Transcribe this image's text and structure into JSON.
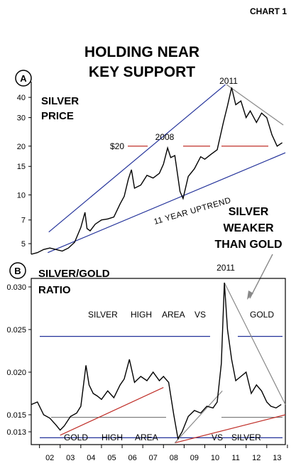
{
  "chart_label": "CHART 1",
  "headline_line1": "HOLDING NEAR",
  "headline_line2": "KEY SUPPORT",
  "callout_line1": "SILVER",
  "callout_line2": "WEAKER",
  "callout_line3": "THAN GOLD",
  "chart_data": [
    {
      "type": "line",
      "panel_marker": "A",
      "title_line1": "SILVER",
      "title_line2": "PRICE",
      "scale": "log",
      "ylim": [
        4.3,
        50
      ],
      "yticks": [
        5,
        7,
        10,
        15,
        20,
        30,
        40
      ],
      "xlim": [
        2001.6,
        2013.9
      ],
      "annotations": {
        "level_label": "$20",
        "label_2008": "2008",
        "label_2011": "2011",
        "trend_label": "11 YEAR UPTREND"
      },
      "trendlines": [
        {
          "name": "upper channel",
          "x": [
            2002.45,
            2011.0
          ],
          "y": [
            5.9,
            48.0
          ]
        },
        {
          "name": "11 year uptrend",
          "x": [
            2002.4,
            2013.9
          ],
          "y": [
            4.4,
            18.2
          ]
        },
        {
          "name": "2011 downtrend",
          "x": [
            2011.05,
            2013.8
          ],
          "y": [
            48.0,
            27.0
          ]
        },
        {
          "name": "$20 level",
          "level": 20
        }
      ],
      "x": [
        2001.6,
        2001.9,
        2002.2,
        2002.5,
        2002.8,
        2003.1,
        2003.4,
        2003.7,
        2004.0,
        2004.2,
        2004.3,
        2004.45,
        2004.7,
        2005.0,
        2005.3,
        2005.6,
        2005.9,
        2006.1,
        2006.3,
        2006.45,
        2006.6,
        2006.9,
        2007.2,
        2007.5,
        2007.8,
        2008.0,
        2008.2,
        2008.35,
        2008.55,
        2008.8,
        2008.95,
        2009.2,
        2009.5,
        2009.8,
        2010.0,
        2010.3,
        2010.6,
        2010.9,
        2011.1,
        2011.3,
        2011.5,
        2011.75,
        2012.0,
        2012.2,
        2012.5,
        2012.75,
        2013.0,
        2013.25,
        2013.5,
        2013.75
      ],
      "y": [
        4.3,
        4.4,
        4.6,
        4.7,
        4.6,
        4.5,
        4.7,
        5.1,
        6.3,
        7.8,
        6.2,
        6.0,
        6.6,
        7.0,
        7.1,
        7.3,
        8.8,
        9.8,
        12.5,
        14.3,
        11.0,
        11.5,
        13.2,
        12.7,
        13.6,
        15.5,
        19.5,
        17.0,
        17.5,
        10.5,
        9.5,
        13.0,
        14.5,
        17.2,
        16.6,
        17.8,
        19.0,
        28.0,
        35.5,
        46.0,
        36.0,
        38.0,
        30.0,
        33.0,
        28.0,
        32.0,
        30.0,
        23.5,
        20.0,
        21.0
      ]
    },
    {
      "type": "line",
      "panel_marker": "B",
      "title_line1": "SILVER/GOLD",
      "title_line2": "RATIO",
      "ylim": [
        0.0115,
        0.031
      ],
      "yticks": [
        0.013,
        0.015,
        0.02,
        0.025,
        0.03
      ],
      "ytick_labels": [
        "0.013",
        "0.015",
        "0.020",
        "0.025",
        "0.030"
      ],
      "xlim": [
        2001.6,
        2013.9
      ],
      "categories": [
        "02",
        "03",
        "04",
        "05",
        "06",
        "07",
        "08",
        "09",
        "10",
        "11",
        "12",
        "13"
      ],
      "annotations": {
        "label_2011": "2011",
        "top_words": [
          "SILVER",
          "HIGH",
          "AREA",
          "VS",
          "GOLD"
        ],
        "bottom_words": [
          "GOLD",
          "HIGH",
          "AREA",
          "VS",
          "SILVER"
        ]
      },
      "reference_levels": [
        0.0242,
        0.0147,
        0.0123
      ],
      "trendlines": [
        {
          "name": "2003-2008 uptrend",
          "x": [
            2003.0,
            2008.0
          ],
          "y": [
            0.0126,
            0.0182
          ]
        },
        {
          "name": "2008-2013 uptrend",
          "x": [
            2008.55,
            2013.9
          ],
          "y": [
            0.0117,
            0.015
          ]
        },
        {
          "name": "2008-2011 rise",
          "x": [
            2008.55,
            2010.85
          ],
          "y": [
            0.0117,
            0.0178
          ]
        },
        {
          "name": "2011 downtrend",
          "x": [
            2010.95,
            2013.9
          ],
          "y": [
            0.0305,
            0.0162
          ]
        }
      ],
      "x": [
        2001.6,
        2001.9,
        2002.2,
        2002.5,
        2002.8,
        2003.0,
        2003.2,
        2003.5,
        2003.8,
        2004.0,
        2004.25,
        2004.4,
        2004.6,
        2004.8,
        2005.0,
        2005.3,
        2005.6,
        2005.9,
        2006.1,
        2006.35,
        2006.6,
        2006.9,
        2007.2,
        2007.5,
        2007.8,
        2008.0,
        2008.25,
        2008.5,
        2008.7,
        2008.9,
        2009.2,
        2009.5,
        2009.8,
        2010.1,
        2010.4,
        2010.6,
        2010.8,
        2010.95,
        2011.1,
        2011.3,
        2011.5,
        2011.75,
        2012.0,
        2012.25,
        2012.5,
        2012.75,
        2013.0,
        2013.2,
        2013.45,
        2013.7
      ],
      "y": [
        0.0162,
        0.0165,
        0.015,
        0.0146,
        0.0138,
        0.0132,
        0.0137,
        0.0148,
        0.0152,
        0.016,
        0.0208,
        0.0185,
        0.0175,
        0.0172,
        0.0168,
        0.0178,
        0.017,
        0.0185,
        0.0192,
        0.0215,
        0.0188,
        0.0195,
        0.019,
        0.02,
        0.019,
        0.0195,
        0.0188,
        0.015,
        0.0122,
        0.013,
        0.0148,
        0.0155,
        0.0152,
        0.016,
        0.0158,
        0.0165,
        0.021,
        0.0305,
        0.025,
        0.0215,
        0.019,
        0.0195,
        0.02,
        0.0175,
        0.0185,
        0.0178,
        0.0165,
        0.016,
        0.0158,
        0.0162
      ]
    }
  ]
}
